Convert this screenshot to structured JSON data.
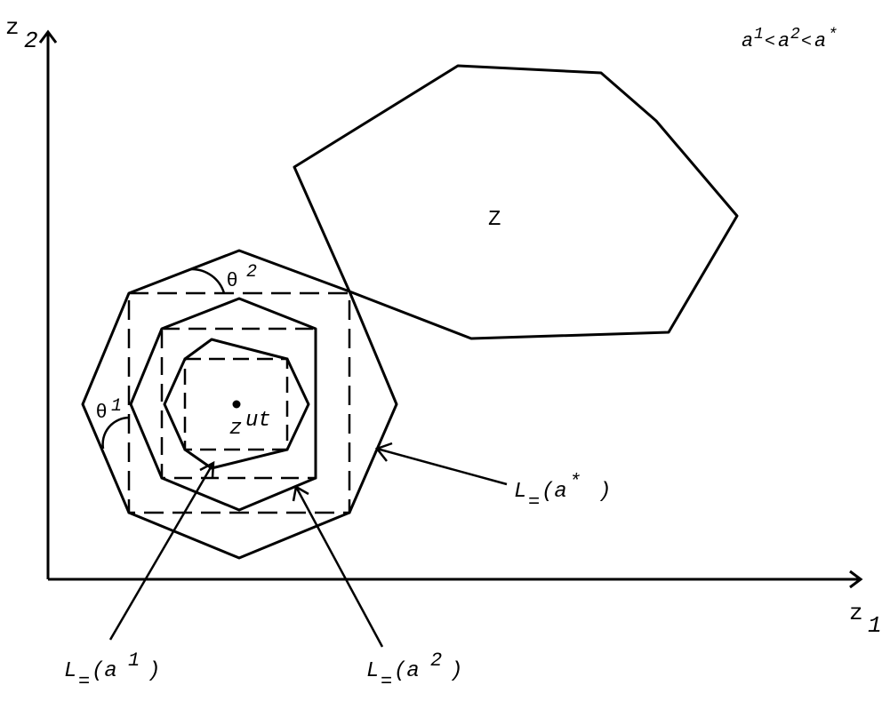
{
  "axes": {
    "y_label": "z",
    "y_sub": "2",
    "x_label": "z",
    "x_sub": "1"
  },
  "condition": {
    "a1": "a",
    "a1_sup": "1",
    "lt1": "<",
    "a2": "a",
    "a2_sup": "2",
    "lt2": "<",
    "astar": "a",
    "astar_sup": "*"
  },
  "feasible_set_label": "Z",
  "utopia": {
    "base": "z",
    "sup": "ut"
  },
  "angles": {
    "theta1": {
      "symbol": "θ",
      "sup": "1"
    },
    "theta2": {
      "symbol": "θ",
      "sup": "2"
    }
  },
  "level_sets": {
    "astar": {
      "base": "L",
      "sub": "=",
      "arg_open": "(a",
      "arg_sup": "*",
      "arg_close": ")"
    },
    "a1": {
      "base": "L",
      "sub": "=",
      "arg_open": "(a",
      "arg_sup": "1",
      "arg_close": ")"
    },
    "a2": {
      "base": "L",
      "sub": "=",
      "arg_open": "(a",
      "arg_sup": "2",
      "arg_close": ")"
    }
  }
}
